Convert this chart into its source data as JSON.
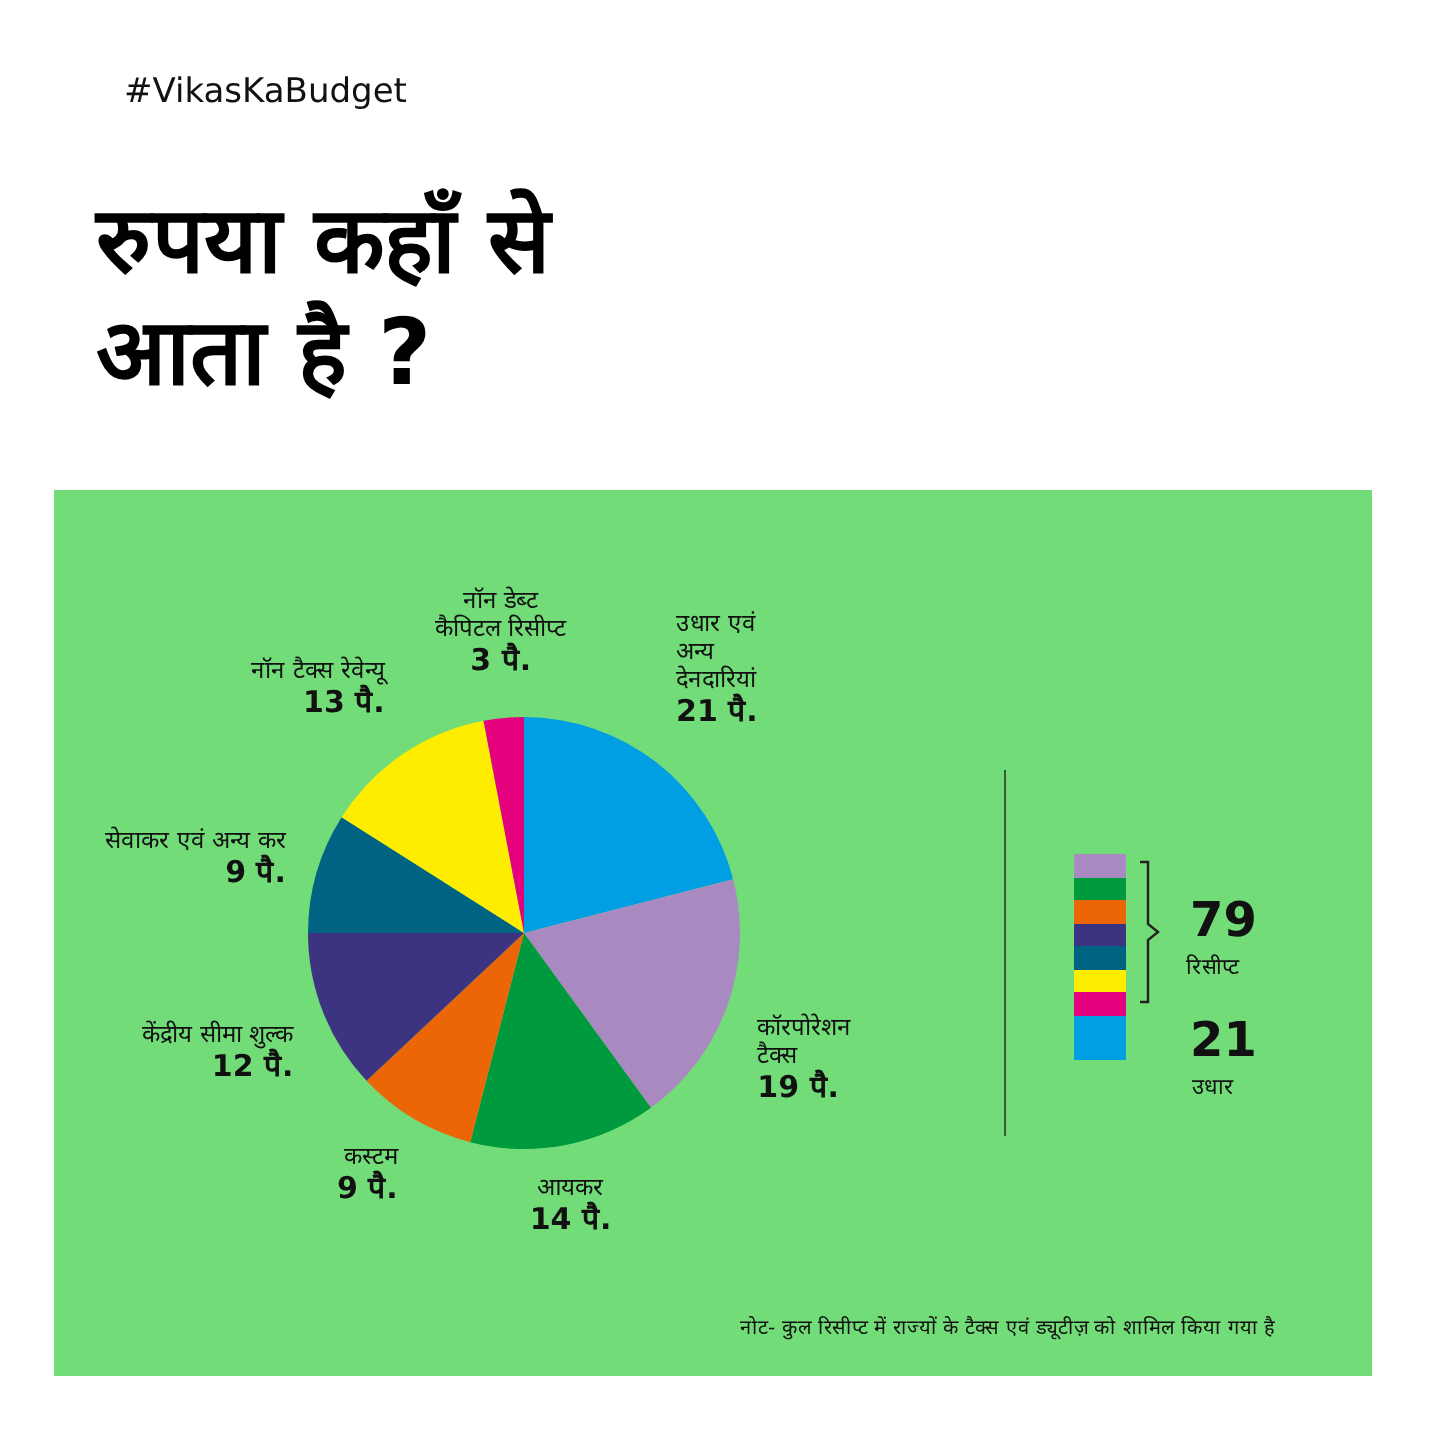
{
  "chart_data": {
    "type": "pie",
    "title": "रुपया कहाँ से आता है ?",
    "categories": [
      "उधार एवं अन्य देनदारियां",
      "कॉरपोरेशन टैक्स",
      "आयकर",
      "कस्टम",
      "केंद्रीय सीमा शुल्क",
      "सेवाकर एवं अन्य कर",
      "नॉन टैक्स रेवेन्यू",
      "नॉन डेब्ट कैपिटल रिसीप्ट"
    ],
    "values": [
      21,
      19,
      14,
      9,
      12,
      9,
      13,
      3
    ],
    "value_labels": [
      "21 पै.",
      "19 पै.",
      "14 पै.",
      "9 पै.",
      "12 पै.",
      "9 पै.",
      "13 पै.",
      "3 पै."
    ],
    "colors": [
      "#009fe3",
      "#a98ac0",
      "#009a3e",
      "#ec6608",
      "#3c3481",
      "#006382",
      "#ffed00",
      "#e5007e"
    ],
    "annotations": [
      "#VikasKaBudget",
      "79",
      "रिसीप्ट",
      "21",
      "उधार",
      "नोट- कुल रिसीप्ट में राज्यों के टैक्स एवं ड्यूटीज़ को शामिल किया गया है"
    ]
  }
}
